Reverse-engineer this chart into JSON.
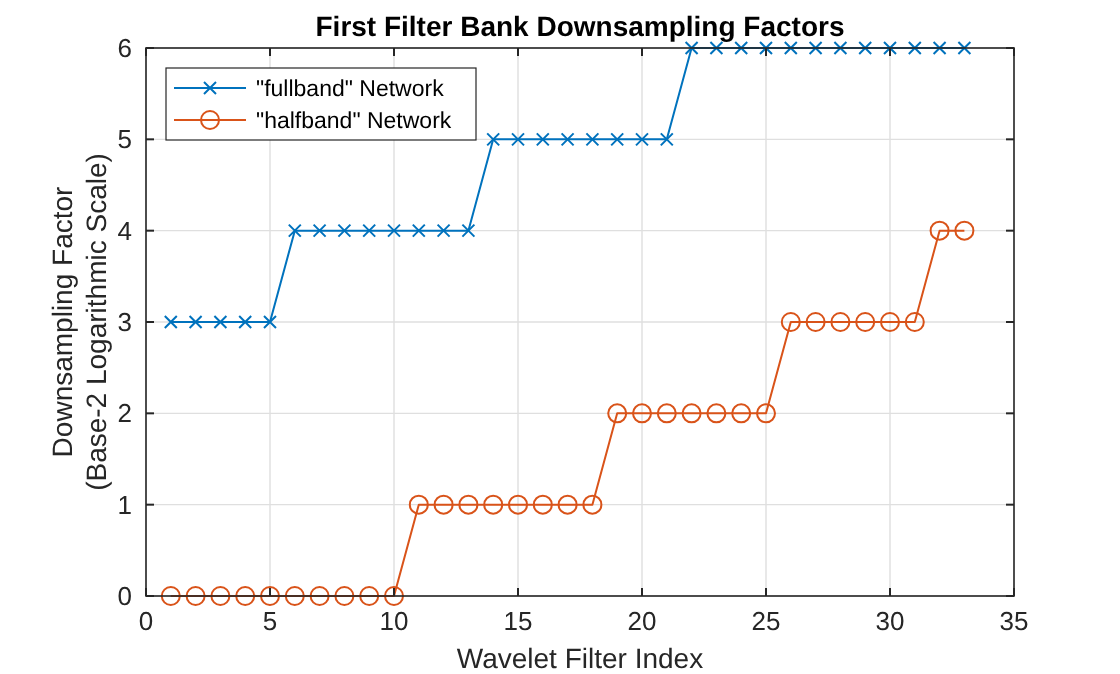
{
  "chart_data": {
    "type": "line",
    "title": "First Filter Bank Downsampling Factors",
    "xlabel": "Wavelet Filter Index",
    "ylabel": "Downsampling Factor\n(Base-2 Logarithmic Scale)",
    "xlim": [
      0,
      35
    ],
    "xticks": [
      0,
      5,
      10,
      15,
      20,
      25,
      30,
      35
    ],
    "ylim": [
      0,
      6
    ],
    "yticks": [
      0,
      1,
      2,
      3,
      4,
      5,
      6
    ],
    "grid": true,
    "legend": "top left",
    "series": [
      {
        "name": "\"fullband\" Network",
        "color": "#0072bd",
        "marker": "cross",
        "x": [
          1,
          2,
          3,
          4,
          5,
          6,
          7,
          8,
          9,
          10,
          11,
          12,
          13,
          14,
          15,
          16,
          17,
          18,
          19,
          20,
          21,
          22,
          23,
          24,
          25,
          26,
          27,
          28,
          29,
          30,
          31,
          32,
          33
        ],
        "values": [
          3,
          3,
          3,
          3,
          3,
          4,
          4,
          4,
          4,
          4,
          4,
          4,
          4,
          5,
          5,
          5,
          5,
          5,
          5,
          5,
          5,
          6,
          6,
          6,
          6,
          6,
          6,
          6,
          6,
          6,
          6,
          6,
          6
        ]
      },
      {
        "name": "\"halfband\" Network",
        "color": "#d95319",
        "marker": "circle",
        "x": [
          1,
          2,
          3,
          4,
          5,
          6,
          7,
          8,
          9,
          10,
          11,
          12,
          13,
          14,
          15,
          16,
          17,
          18,
          19,
          20,
          21,
          22,
          23,
          24,
          25,
          26,
          27,
          28,
          29,
          30,
          31,
          32,
          33
        ],
        "values": [
          0,
          0,
          0,
          0,
          0,
          0,
          0,
          0,
          0,
          0,
          1,
          1,
          1,
          1,
          1,
          1,
          1,
          1,
          2,
          2,
          2,
          2,
          2,
          2,
          2,
          3,
          3,
          3,
          3,
          3,
          3,
          4,
          4
        ]
      }
    ]
  }
}
